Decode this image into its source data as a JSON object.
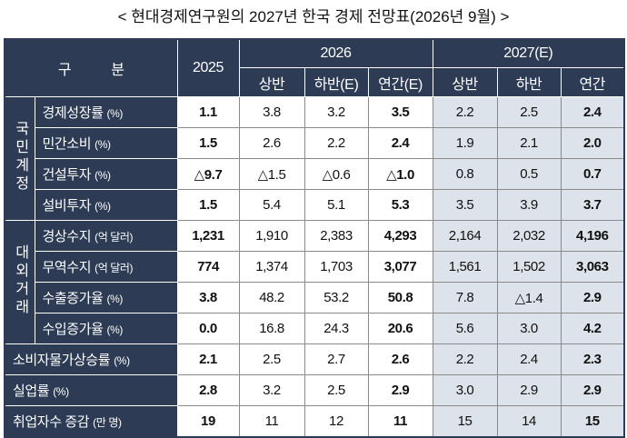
{
  "title": "< 현대경제연구원의 2027년 한국 경제 전망표(2026년 9월) >",
  "header": {
    "label": "구 분",
    "years": [
      "2025",
      "2026",
      "2027(E)"
    ],
    "sub": [
      "상반",
      "하반(E)",
      "연간(E)",
      "상반",
      "하반",
      "연간"
    ]
  },
  "sections": [
    {
      "group": "국민계정",
      "rows": [
        {
          "label": "경제성장률",
          "unit": "(%)",
          "values": [
            "1.1",
            "3.8",
            "3.2",
            "3.5",
            "2.2",
            "2.5",
            "2.4"
          ]
        },
        {
          "label": "민간소비",
          "unit": "(%)",
          "values": [
            "1.5",
            "2.6",
            "2.2",
            "2.4",
            "1.9",
            "2.1",
            "2.0"
          ]
        },
        {
          "label": "건설투자",
          "unit": "(%)",
          "values": [
            "△9.7",
            "△1.5",
            "△0.6",
            "△1.0",
            "0.8",
            "0.5",
            "0.7"
          ]
        },
        {
          "label": "설비투자",
          "unit": "(%)",
          "values": [
            "1.5",
            "5.4",
            "5.1",
            "5.3",
            "3.5",
            "3.9",
            "3.7"
          ]
        }
      ]
    },
    {
      "group": "대외거래",
      "rows": [
        {
          "label": "경상수지",
          "unit": "(억 달러)",
          "values": [
            "1,231",
            "1,910",
            "2,383",
            "4,293",
            "2,164",
            "2,032",
            "4,196"
          ]
        },
        {
          "label": "무역수지",
          "unit": "(억 달러)",
          "values": [
            "774",
            "1,374",
            "1,703",
            "3,077",
            "1,561",
            "1,502",
            "3,063"
          ]
        },
        {
          "label": "수출증가율",
          "unit": "(%)",
          "values": [
            "3.8",
            "48.2",
            "53.2",
            "50.8",
            "7.8",
            "△1.4",
            "2.9"
          ]
        },
        {
          "label": "수입증가율",
          "unit": "(%)",
          "values": [
            "0.0",
            "16.8",
            "24.3",
            "20.6",
            "5.6",
            "3.0",
            "4.2"
          ]
        }
      ]
    },
    {
      "rows": [
        {
          "label": "소비자물가상승률",
          "unit": "(%)",
          "values": [
            "2.1",
            "2.5",
            "2.7",
            "2.6",
            "2.2",
            "2.4",
            "2.3"
          ]
        },
        {
          "label": "실업률",
          "unit": "(%)",
          "values": [
            "2.8",
            "3.2",
            "2.5",
            "2.9",
            "3.0",
            "2.9",
            "2.9"
          ]
        },
        {
          "label": "취업자수 증감",
          "unit": "(만 명)",
          "values": [
            "19",
            "11",
            "12",
            "11",
            "15",
            "14",
            "15"
          ]
        }
      ]
    }
  ]
}
